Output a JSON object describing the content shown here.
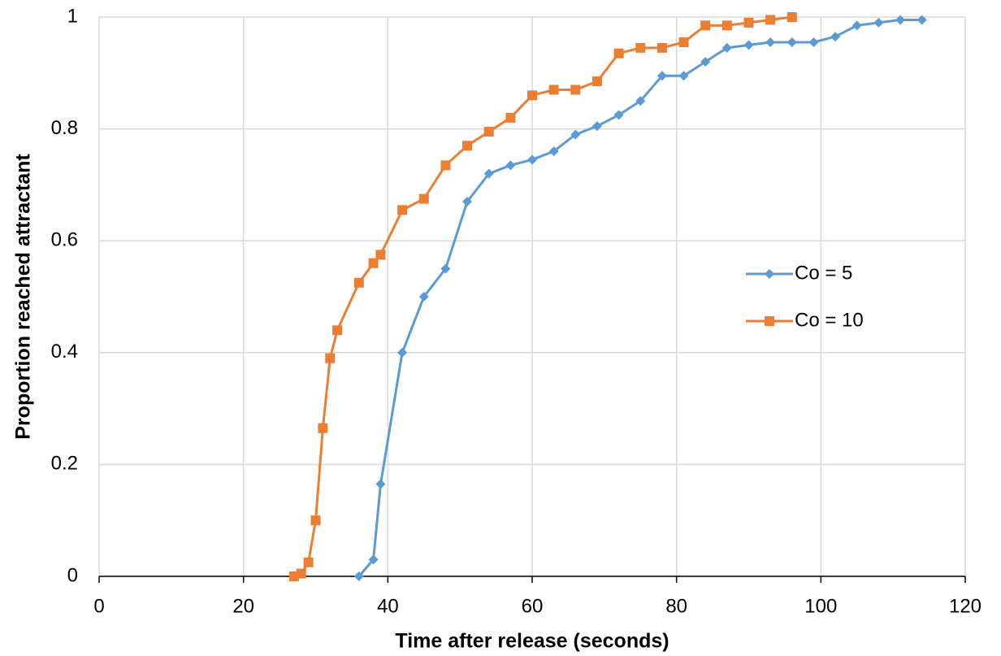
{
  "chart_data": {
    "type": "line",
    "x_label": "Time after release (seconds)",
    "y_label": "Proportion reached attractant",
    "xlim": [
      0,
      120
    ],
    "xticks": [
      0,
      20,
      40,
      60,
      80,
      100,
      120
    ],
    "ylim": [
      0,
      1
    ],
    "yticks": [
      0,
      0.2,
      0.4,
      0.6,
      0.8,
      1
    ],
    "grid": true,
    "legend": "right",
    "series": [
      {
        "name": "Co = 5",
        "color": "#5b9bd5",
        "marker": "diamond",
        "x": [
          36,
          38,
          39,
          42,
          45,
          48,
          51,
          54,
          57,
          60,
          63,
          66,
          69,
          72,
          75,
          78,
          81,
          84,
          87,
          90,
          93,
          96,
          99,
          102,
          105,
          108,
          111,
          114
        ],
        "values": [
          0,
          0.03,
          0.165,
          0.4,
          0.5,
          0.55,
          0.67,
          0.72,
          0.735,
          0.745,
          0.76,
          0.79,
          0.805,
          0.825,
          0.85,
          0.895,
          0.895,
          0.92,
          0.945,
          0.95,
          0.955,
          0.955,
          0.955,
          0.965,
          0.985,
          0.99,
          0.995,
          0.995
        ]
      },
      {
        "name": "Co = 10",
        "color": "#ed7d31",
        "marker": "square",
        "x": [
          27,
          28,
          29,
          30,
          31,
          32,
          33,
          36,
          38,
          39,
          42,
          45,
          48,
          51,
          54,
          57,
          60,
          63,
          66,
          69,
          72,
          75,
          78,
          81,
          84,
          87,
          90,
          93,
          96
        ],
        "values": [
          0,
          0.005,
          0.025,
          0.1,
          0.265,
          0.39,
          0.44,
          0.525,
          0.56,
          0.575,
          0.655,
          0.675,
          0.735,
          0.77,
          0.795,
          0.82,
          0.86,
          0.87,
          0.87,
          0.885,
          0.935,
          0.945,
          0.945,
          0.955,
          0.985,
          0.985,
          0.99,
          0.995,
          1
        ]
      }
    ]
  }
}
